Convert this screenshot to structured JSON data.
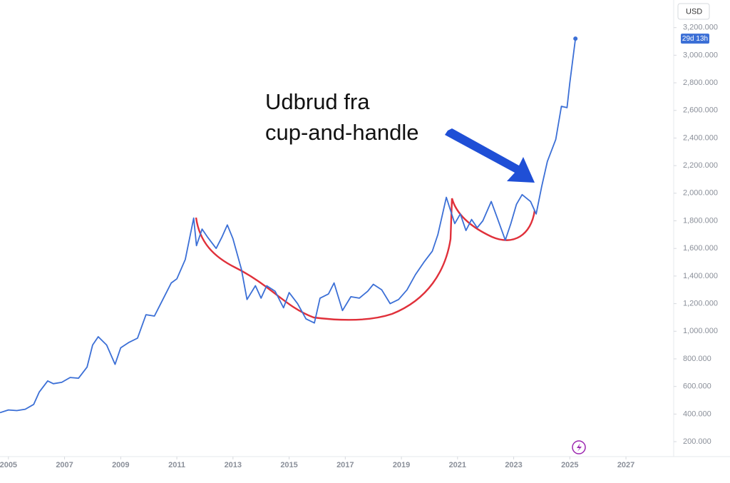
{
  "chart_data": {
    "type": "line",
    "annotation": [
      "Udbrud fra",
      "cup-and-handle"
    ],
    "currency": "USD",
    "countdown": "29d 13h",
    "color": "#3b6fd6",
    "x": [
      2004.7,
      2005.0,
      2005.3,
      2005.6,
      2005.9,
      2006.1,
      2006.4,
      2006.6,
      2006.9,
      2007.2,
      2007.5,
      2007.8,
      2008.0,
      2008.2,
      2008.5,
      2008.8,
      2009.0,
      2009.3,
      2009.6,
      2009.9,
      2010.2,
      2010.5,
      2010.8,
      2011.0,
      2011.3,
      2011.6,
      2011.7,
      2011.9,
      2012.1,
      2012.4,
      2012.6,
      2012.8,
      2013.0,
      2013.3,
      2013.5,
      2013.8,
      2014.0,
      2014.2,
      2014.5,
      2014.8,
      2015.0,
      2015.3,
      2015.6,
      2015.9,
      2016.1,
      2016.4,
      2016.6,
      2016.9,
      2017.2,
      2017.5,
      2017.8,
      2018.0,
      2018.3,
      2018.6,
      2018.9,
      2019.2,
      2019.5,
      2019.8,
      2020.1,
      2020.3,
      2020.6,
      2020.9,
      2021.1,
      2021.3,
      2021.5,
      2021.7,
      2021.9,
      2022.2,
      2022.4,
      2022.7,
      2022.9,
      2023.1,
      2023.3,
      2023.6,
      2023.8,
      2024.0,
      2024.2,
      2024.5,
      2024.7,
      2024.9,
      2025.0,
      2025.2
    ],
    "values": [
      410,
      430,
      425,
      435,
      470,
      560,
      640,
      620,
      630,
      665,
      660,
      740,
      900,
      960,
      900,
      760,
      880,
      920,
      950,
      1120,
      1110,
      1230,
      1350,
      1380,
      1520,
      1820,
      1620,
      1740,
      1680,
      1600,
      1680,
      1770,
      1670,
      1450,
      1230,
      1330,
      1240,
      1330,
      1290,
      1170,
      1280,
      1200,
      1090,
      1060,
      1240,
      1270,
      1350,
      1150,
      1250,
      1240,
      1290,
      1340,
      1300,
      1200,
      1230,
      1300,
      1410,
      1500,
      1580,
      1700,
      1970,
      1780,
      1850,
      1730,
      1810,
      1750,
      1800,
      1940,
      1830,
      1660,
      1780,
      1920,
      1990,
      1940,
      1850,
      2050,
      2230,
      2390,
      2630,
      2620,
      2800,
      3120
    ],
    "xlim": [
      2004.7,
      2028.7
    ],
    "xticks": [
      2005,
      2007,
      2009,
      2011,
      2013,
      2015,
      2017,
      2019,
      2021,
      2023,
      2025,
      2027
    ],
    "ylim": [
      100,
      3400
    ],
    "yticks": [
      {
        "value": 200,
        "label": "200.000"
      },
      {
        "value": 400,
        "label": "400.000"
      },
      {
        "value": 600,
        "label": "600.000"
      },
      {
        "value": 800,
        "label": "800.000"
      },
      {
        "value": 1000,
        "label": "1,000.000"
      },
      {
        "value": 1200,
        "label": "1,200.000"
      },
      {
        "value": 1400,
        "label": "1,400.000"
      },
      {
        "value": 1600,
        "label": "1,600.000"
      },
      {
        "value": 1800,
        "label": "1,800.000"
      },
      {
        "value": 2000,
        "label": "2,000.000"
      },
      {
        "value": 2200,
        "label": "2,200.000"
      },
      {
        "value": 2400,
        "label": "2,400.000"
      },
      {
        "value": 2600,
        "label": "2,600.000"
      },
      {
        "value": 2800,
        "label": "2,800.000"
      },
      {
        "value": 3000,
        "label": "3,000.000"
      },
      {
        "value": 3200,
        "label": "3,200.000"
      }
    ]
  }
}
